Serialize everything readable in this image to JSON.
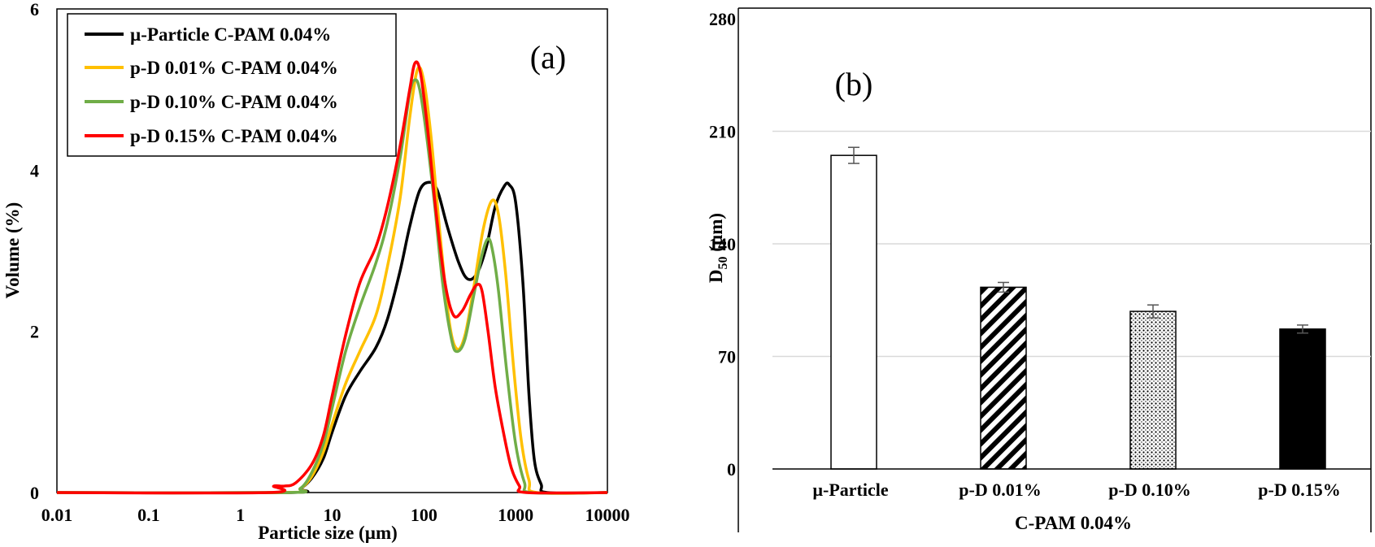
{
  "chart_data": [
    {
      "type": "line",
      "panel_label": "(a)",
      "xlabel": "Particle size (µm)",
      "ylabel": "Volume (%)",
      "xscale": "log",
      "xlim": [
        0.01,
        10000
      ],
      "ylim": [
        0,
        6
      ],
      "xticks": [
        "0.01",
        "0.1",
        "1",
        "10",
        "100",
        "1000",
        "10000"
      ],
      "yticks": [
        "0",
        "2",
        "4",
        "6"
      ],
      "legend_position": "top-left",
      "grid": false,
      "series": [
        {
          "name": "µ-Particle C-PAM 0.04%",
          "color": "#000000",
          "points": [
            [
              0.01,
              0
            ],
            [
              3.2,
              0
            ],
            [
              4.5,
              0.05
            ],
            [
              6,
              0.18
            ],
            [
              8,
              0.42
            ],
            [
              10,
              0.75
            ],
            [
              14,
              1.2
            ],
            [
              20,
              1.5
            ],
            [
              30,
              1.8
            ],
            [
              40,
              2.15
            ],
            [
              55,
              2.75
            ],
            [
              70,
              3.3
            ],
            [
              90,
              3.75
            ],
            [
              115,
              3.85
            ],
            [
              140,
              3.75
            ],
            [
              180,
              3.3
            ],
            [
              240,
              2.85
            ],
            [
              300,
              2.65
            ],
            [
              380,
              2.72
            ],
            [
              480,
              3.05
            ],
            [
              600,
              3.55
            ],
            [
              750,
              3.8
            ],
            [
              850,
              3.82
            ],
            [
              1000,
              3.6
            ],
            [
              1200,
              2.6
            ],
            [
              1400,
              1.2
            ],
            [
              1600,
              0.4
            ],
            [
              1900,
              0.1
            ],
            [
              2200,
              0
            ],
            [
              10000,
              0
            ]
          ]
        },
        {
          "name": "p-D 0.01% C-PAM 0.04%",
          "color": "#FFC000",
          "points": [
            [
              0.01,
              0
            ],
            [
              3.0,
              0
            ],
            [
              4.5,
              0.05
            ],
            [
              6,
              0.2
            ],
            [
              8,
              0.5
            ],
            [
              10,
              0.85
            ],
            [
              14,
              1.35
            ],
            [
              20,
              1.75
            ],
            [
              30,
              2.2
            ],
            [
              40,
              2.8
            ],
            [
              55,
              3.65
            ],
            [
              70,
              4.65
            ],
            [
              85,
              5.25
            ],
            [
              100,
              5.1
            ],
            [
              120,
              4.4
            ],
            [
              150,
              3.2
            ],
            [
              190,
              2.1
            ],
            [
              230,
              1.78
            ],
            [
              280,
              1.95
            ],
            [
              350,
              2.55
            ],
            [
              440,
              3.25
            ],
            [
              550,
              3.62
            ],
            [
              650,
              3.45
            ],
            [
              780,
              2.7
            ],
            [
              950,
              1.55
            ],
            [
              1150,
              0.65
            ],
            [
              1400,
              0.15
            ],
            [
              1700,
              0
            ],
            [
              10000,
              0
            ]
          ]
        },
        {
          "name": "p-D 0.10% C-PAM 0.04%",
          "color": "#70AD47",
          "points": [
            [
              0.01,
              0
            ],
            [
              3.0,
              0
            ],
            [
              4.5,
              0.05
            ],
            [
              6,
              0.25
            ],
            [
              8,
              0.6
            ],
            [
              10,
              1.05
            ],
            [
              14,
              1.75
            ],
            [
              20,
              2.3
            ],
            [
              30,
              2.85
            ],
            [
              40,
              3.35
            ],
            [
              55,
              4.15
            ],
            [
              70,
              4.95
            ],
            [
              80,
              5.12
            ],
            [
              90,
              5.0
            ],
            [
              105,
              4.5
            ],
            [
              130,
              3.6
            ],
            [
              160,
              2.6
            ],
            [
              200,
              1.9
            ],
            [
              230,
              1.75
            ],
            [
              280,
              1.9
            ],
            [
              350,
              2.45
            ],
            [
              430,
              2.95
            ],
            [
              500,
              3.15
            ],
            [
              560,
              3.0
            ],
            [
              650,
              2.5
            ],
            [
              800,
              1.5
            ],
            [
              1000,
              0.6
            ],
            [
              1250,
              0.12
            ],
            [
              1500,
              0
            ],
            [
              10000,
              0
            ]
          ]
        },
        {
          "name": "p-D 0.15% C-PAM 0.04%",
          "color": "#FF0000",
          "points": [
            [
              0.01,
              0
            ],
            [
              2.0,
              0
            ],
            [
              2.3,
              0.08
            ],
            [
              3.0,
              0.08
            ],
            [
              4.0,
              0.12
            ],
            [
              6,
              0.35
            ],
            [
              8,
              0.7
            ],
            [
              10,
              1.2
            ],
            [
              14,
              1.95
            ],
            [
              20,
              2.6
            ],
            [
              30,
              3.05
            ],
            [
              40,
              3.55
            ],
            [
              55,
              4.3
            ],
            [
              70,
              5.0
            ],
            [
              80,
              5.33
            ],
            [
              92,
              5.2
            ],
            [
              110,
              4.5
            ],
            [
              135,
              3.5
            ],
            [
              170,
              2.6
            ],
            [
              210,
              2.2
            ],
            [
              260,
              2.25
            ],
            [
              320,
              2.45
            ],
            [
              380,
              2.58
            ],
            [
              430,
              2.5
            ],
            [
              500,
              2.0
            ],
            [
              600,
              1.3
            ],
            [
              750,
              0.7
            ],
            [
              900,
              0.3
            ],
            [
              1100,
              0.08
            ],
            [
              1300,
              0
            ],
            [
              10000,
              0
            ]
          ]
        }
      ]
    },
    {
      "type": "bar",
      "panel_label": "(b)",
      "ylabel": "D50 (µm)",
      "ylabel_main": "D",
      "ylabel_sub": "50",
      "ylabel_rest": " (µm)",
      "xlabel": "C-PAM 0.04%",
      "categories": [
        "µ-Particle",
        "p-D 0.01%",
        "p-D 0.10%",
        "p-D 0.15%"
      ],
      "values": [
        195,
        113,
        98,
        87
      ],
      "errors": [
        5,
        3,
        4,
        2.5
      ],
      "patterns": [
        "none",
        "diagonal-stripes",
        "dots",
        "solid"
      ],
      "ylim": [
        0,
        280
      ],
      "yticks": [
        "0",
        "70",
        "140",
        "210",
        "280"
      ],
      "grid": true
    }
  ]
}
